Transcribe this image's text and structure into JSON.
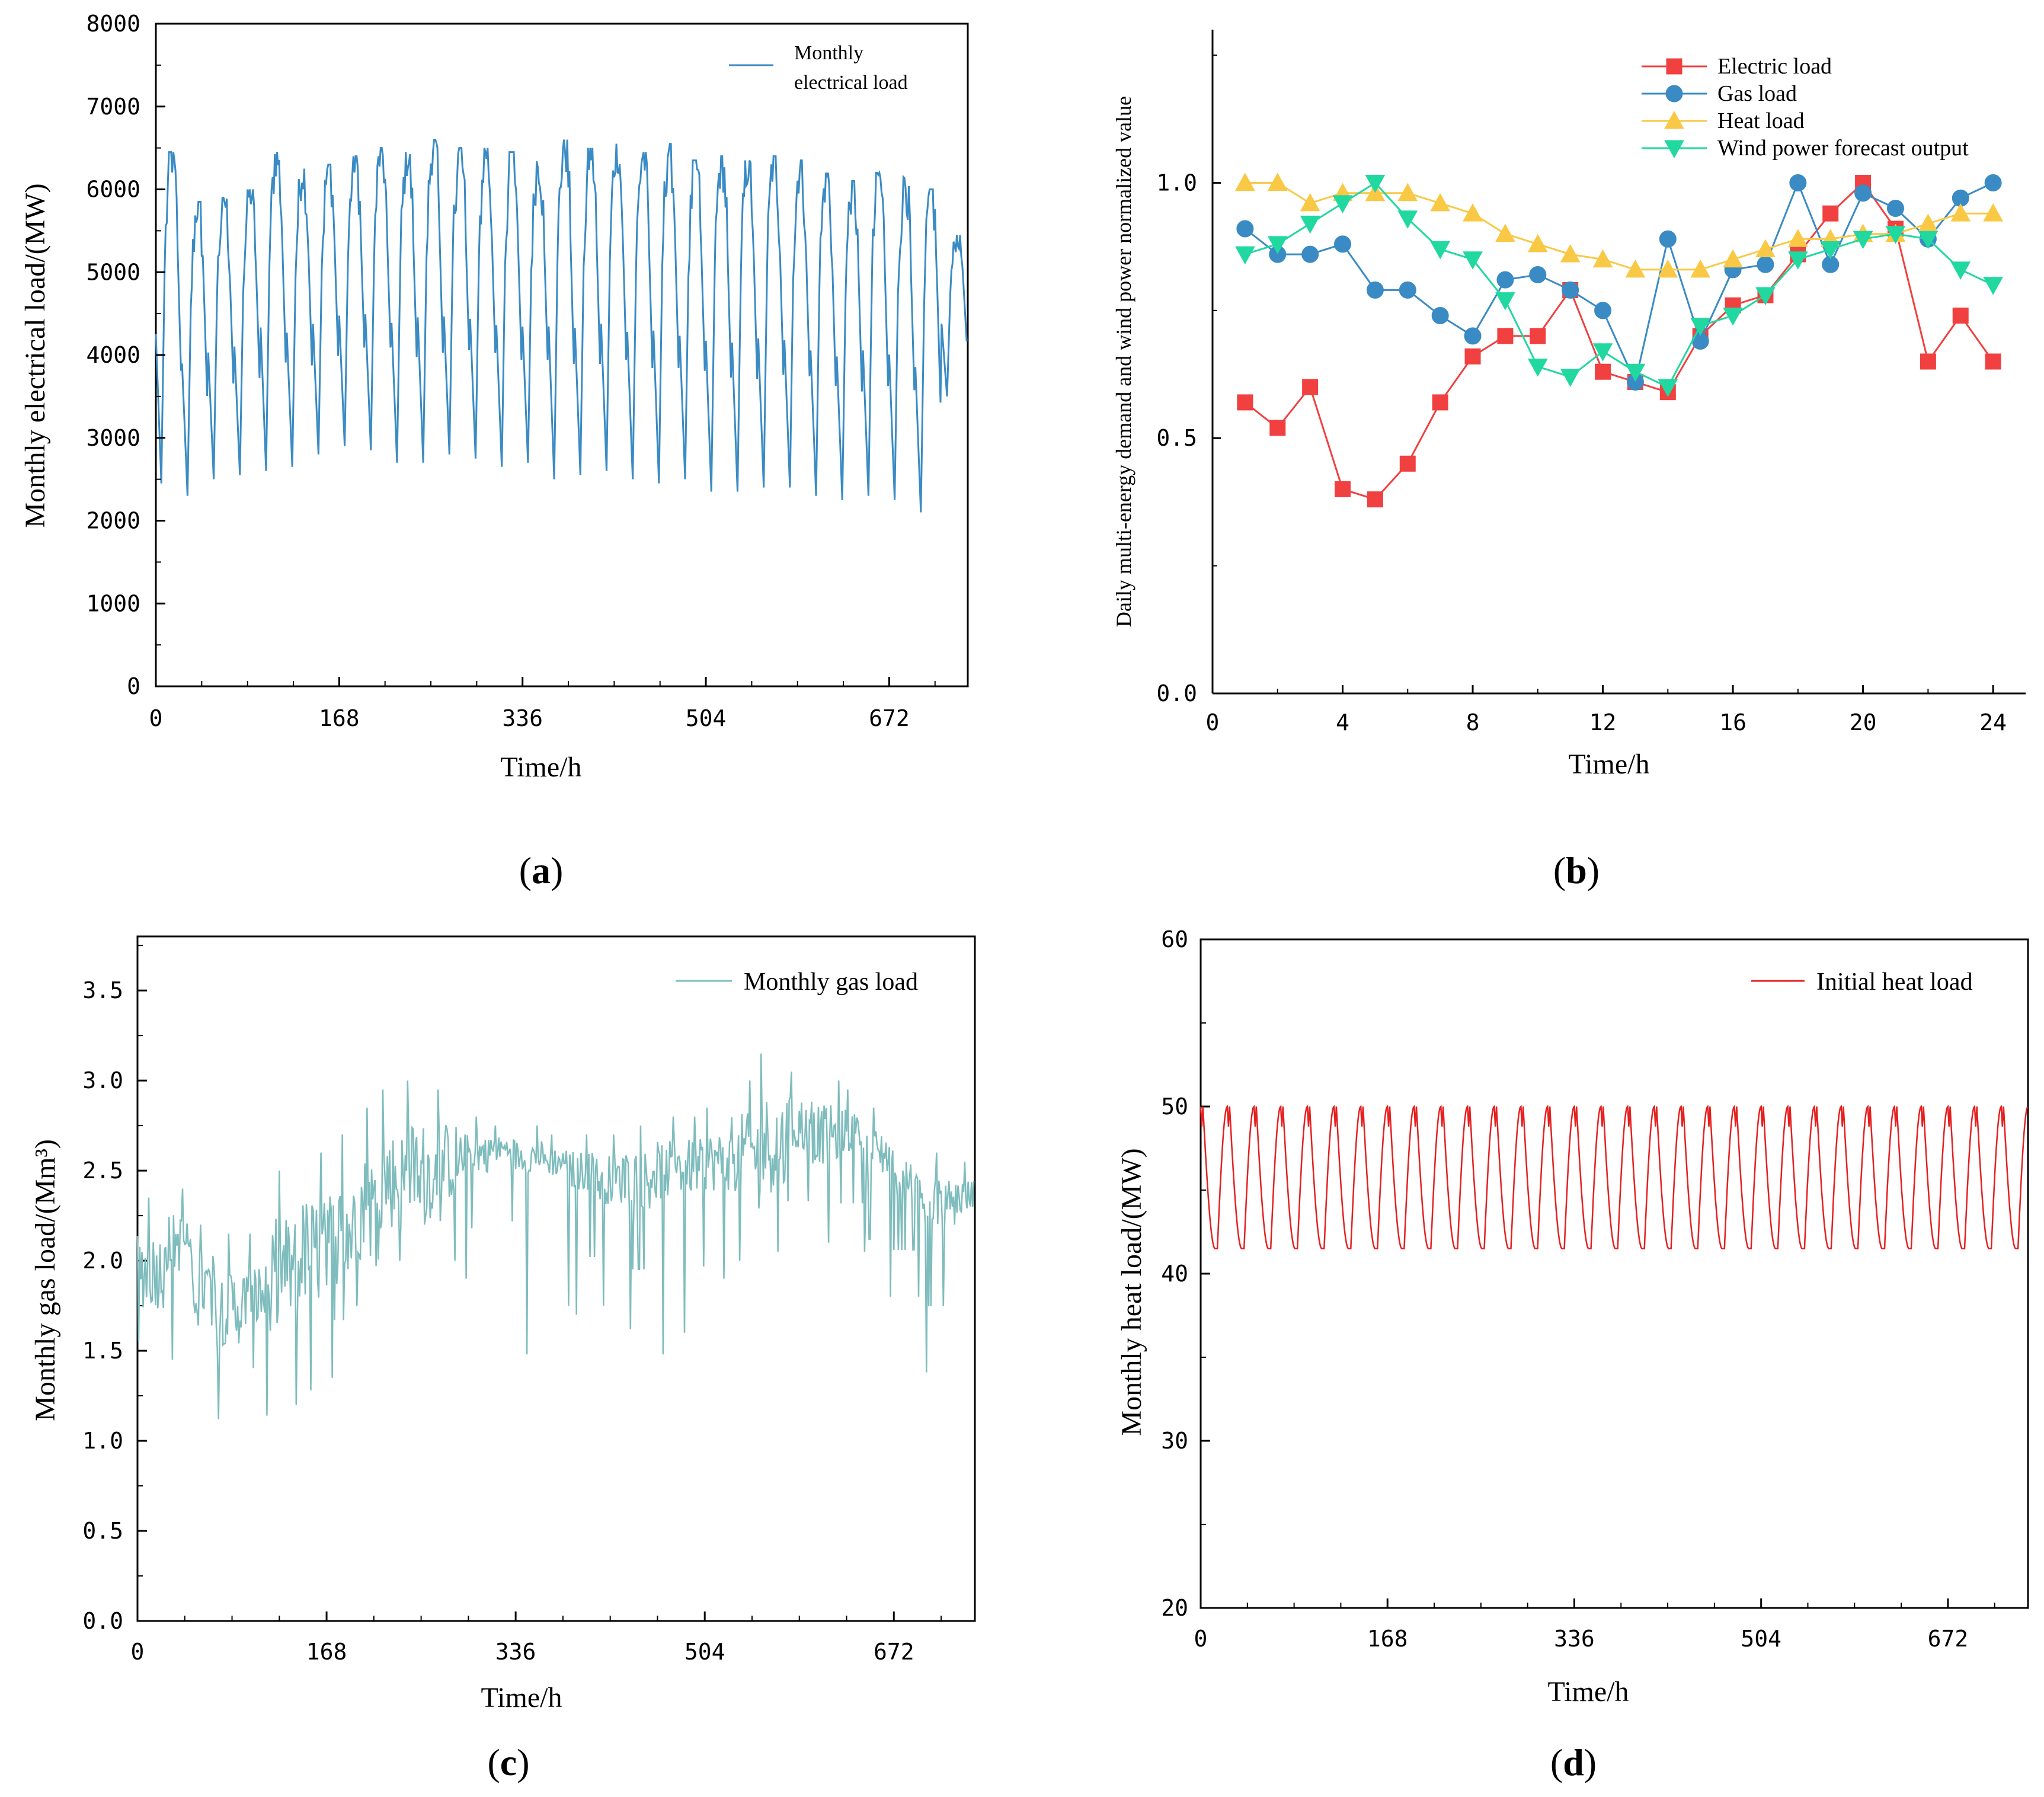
{
  "panels": {
    "a": {
      "letter": "a"
    },
    "b": {
      "letter": "b"
    },
    "c": {
      "letter": "c"
    },
    "d": {
      "letter": "d"
    }
  },
  "chart_data": [
    {
      "id": "a",
      "type": "line",
      "title": "",
      "xlabel": "Time/h",
      "ylabel": "Monthly electrical load/(MW)",
      "xlim": [
        0,
        744
      ],
      "ylim": [
        0,
        8000
      ],
      "xticks": [
        0,
        168,
        336,
        504,
        672
      ],
      "yticks": [
        0,
        1000,
        2000,
        3000,
        4000,
        5000,
        6000,
        7000,
        8000
      ],
      "legend": {
        "position": "top-right",
        "lines": [
          "Monthly",
          "electrical load"
        ]
      },
      "color": "#3a8bc4",
      "series": [
        {
          "name": "Monthly electrical load",
          "pattern": "daily cycle, 31 days",
          "period_h": 24,
          "daily_peaks": [
            6450,
            5850,
            5900,
            6000,
            6450,
            6250,
            6300,
            6400,
            6500,
            6450,
            6600,
            6500,
            6500,
            6450,
            6350,
            6600,
            6500,
            6550,
            6450,
            6550,
            6350,
            6400,
            6350,
            6400,
            6350,
            6200,
            6100,
            6200,
            6150,
            6000,
            5450
          ],
          "daily_troughs": [
            2450,
            2300,
            2500,
            2550,
            2600,
            2650,
            2800,
            2900,
            2850,
            2700,
            2700,
            2800,
            2750,
            2650,
            2700,
            2500,
            2550,
            2600,
            2500,
            2450,
            2500,
            2350,
            2350,
            2400,
            2400,
            2300,
            2250,
            2300,
            2250,
            2100,
            3500
          ]
        }
      ]
    },
    {
      "id": "b",
      "type": "line",
      "title": "",
      "xlabel": "Time/h",
      "ylabel": "Daily multi-energy demand and wind power normalized value",
      "xlim": [
        0,
        25
      ],
      "ylim": [
        0,
        1.3
      ],
      "xticks": [
        0,
        4,
        8,
        12,
        16,
        20,
        24
      ],
      "yticks": [
        0.0,
        0.5,
        1.0
      ],
      "ytick_labels": [
        "0.0",
        "0.5",
        "1.0"
      ],
      "legend": {
        "position": "top-right"
      },
      "x": [
        1,
        2,
        3,
        4,
        5,
        6,
        7,
        8,
        9,
        10,
        11,
        12,
        13,
        14,
        15,
        16,
        17,
        18,
        19,
        20,
        21,
        22,
        23,
        24
      ],
      "series": [
        {
          "name": "Electric load",
          "color": "#f04040",
          "marker": "square",
          "values": [
            0.57,
            0.52,
            0.6,
            0.4,
            0.38,
            0.45,
            0.57,
            0.66,
            0.7,
            0.7,
            0.79,
            0.63,
            0.61,
            0.59,
            0.7,
            0.76,
            0.78,
            0.86,
            0.94,
            1.0,
            0.91,
            0.65,
            0.74,
            0.65
          ]
        },
        {
          "name": "Gas load",
          "color": "#3a8bc4",
          "marker": "circle",
          "values": [
            0.91,
            0.86,
            0.86,
            0.88,
            0.79,
            0.79,
            0.74,
            0.7,
            0.81,
            0.82,
            0.79,
            0.75,
            0.61,
            0.89,
            0.69,
            0.83,
            0.84,
            1.0,
            0.84,
            0.98,
            0.95,
            0.89,
            0.97,
            1.0
          ]
        },
        {
          "name": "Heat load",
          "color": "#f9c945",
          "marker": "triangle-up",
          "values": [
            1.0,
            1.0,
            0.96,
            0.98,
            0.98,
            0.98,
            0.96,
            0.94,
            0.9,
            0.88,
            0.86,
            0.85,
            0.83,
            0.83,
            0.83,
            0.85,
            0.87,
            0.89,
            0.89,
            0.9,
            0.9,
            0.92,
            0.94,
            0.94
          ]
        },
        {
          "name": "Wind power forecast output",
          "color": "#20d8a0",
          "marker": "triangle-down",
          "values": [
            0.86,
            0.88,
            0.92,
            0.96,
            1.0,
            0.93,
            0.87,
            0.85,
            0.77,
            0.64,
            0.62,
            0.67,
            0.63,
            0.6,
            0.72,
            0.74,
            0.78,
            0.85,
            0.87,
            0.89,
            0.9,
            0.89,
            0.83,
            0.8
          ]
        }
      ]
    },
    {
      "id": "c",
      "type": "line",
      "title": "",
      "xlabel": "Time/h",
      "ylabel": "Monthly gas load/(Mm³)",
      "xlim": [
        0,
        744
      ],
      "ylim": [
        0,
        3.8
      ],
      "xticks": [
        0,
        168,
        336,
        504,
        672
      ],
      "yticks": [
        0.0,
        0.5,
        1.0,
        1.5,
        2.0,
        2.5,
        3.0,
        3.5
      ],
      "ytick_labels": [
        "0.0",
        "0.5",
        "1.0",
        "1.5",
        "2.0",
        "2.5",
        "3.0",
        "3.5"
      ],
      "legend": {
        "position": "top-right",
        "lines": [
          "Monthly gas load"
        ]
      },
      "color": "#7fbcbd",
      "series": [
        {
          "name": "Monthly gas load",
          "pattern": "daily mean trend with hourly noise",
          "daily_mean": [
            1.95,
            2.1,
            1.85,
            1.75,
            1.8,
            1.95,
            2.05,
            2.15,
            2.3,
            2.45,
            2.5,
            2.55,
            2.6,
            2.62,
            2.58,
            2.55,
            2.5,
            2.45,
            2.45,
            2.5,
            2.52,
            2.55,
            2.6,
            2.65,
            2.75,
            2.7,
            2.72,
            2.6,
            2.45,
            2.3,
            2.35
          ],
          "daily_max": [
            2.35,
            2.4,
            2.2,
            2.15,
            2.15,
            2.5,
            2.6,
            2.7,
            2.85,
            2.95,
            3.0,
            2.95,
            2.8,
            2.75,
            2.75,
            2.7,
            2.7,
            2.7,
            2.75,
            2.8,
            2.8,
            2.85,
            3.0,
            3.15,
            3.05,
            3.0,
            2.95,
            2.85,
            2.65,
            2.6,
            2.55
          ],
          "daily_min": [
            1.55,
            1.45,
            1.5,
            1.12,
            1.14,
            1.2,
            1.28,
            1.35,
            1.75,
            2.0,
            2.2,
            2.0,
            1.9,
            1.95,
            1.48,
            1.75,
            1.7,
            1.75,
            1.62,
            1.48,
            1.6,
            1.9,
            2.0,
            2.05,
            2.05,
            2.1,
            2.05,
            1.8,
            1.8,
            1.38,
            2.2
          ]
        }
      ]
    },
    {
      "id": "d",
      "type": "line",
      "title": "",
      "xlabel": "Time/h",
      "ylabel": "Monthly heat load/(MW)",
      "xlim": [
        0,
        744
      ],
      "ylim": [
        20,
        60
      ],
      "xticks": [
        0,
        168,
        336,
        504,
        672
      ],
      "yticks": [
        20,
        30,
        40,
        50,
        60
      ],
      "legend": {
        "position": "top-right",
        "lines": [
          "Initial heat load"
        ]
      },
      "color": "#e52020",
      "series": [
        {
          "name": "Initial heat load",
          "pattern": "identical daily cycle, 31 days",
          "period_h": 24,
          "max": 50,
          "min": 41.5
        }
      ]
    }
  ]
}
